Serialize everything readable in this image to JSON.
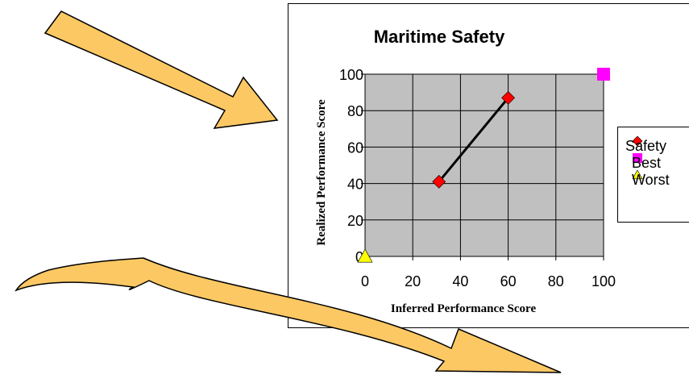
{
  "chart_data": {
    "type": "scatter",
    "title": "Maritime Safety",
    "xlabel": "Inferred Performance Score",
    "ylabel": "Realized Performance Score",
    "xlim": [
      0,
      100
    ],
    "ylim": [
      0,
      100
    ],
    "x_ticks": [
      "0",
      "20",
      "40",
      "60",
      "80",
      "100"
    ],
    "y_ticks": [
      "0",
      "20",
      "40",
      "60",
      "80",
      "100"
    ],
    "grid": true,
    "legend_position": "right",
    "series": [
      {
        "name": "Safety",
        "marker": "diamond",
        "color": "#ff0000",
        "line": true,
        "points": [
          {
            "x": 31,
            "y": 41
          },
          {
            "x": 60,
            "y": 87
          }
        ]
      },
      {
        "name": "Best",
        "marker": "square",
        "color": "#ff00ff",
        "line": false,
        "points": [
          {
            "x": 100,
            "y": 100
          }
        ]
      },
      {
        "name": "Worst",
        "marker": "triangle",
        "color": "#ffff00",
        "line": false,
        "points": [
          {
            "x": 0,
            "y": 0
          }
        ]
      }
    ],
    "plot_background": "#c0c0c0"
  },
  "decor": {
    "arrow_fill": "#fcc864",
    "arrow_stroke": "#000000"
  }
}
